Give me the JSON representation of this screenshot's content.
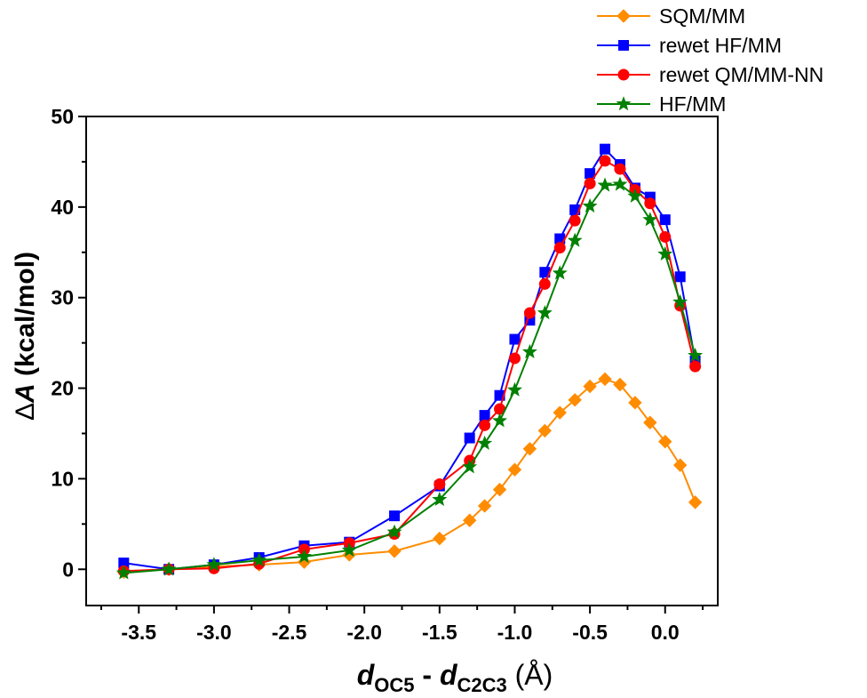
{
  "chart_data": {
    "type": "line",
    "xlabel": {
      "var1": "d",
      "sub1": "OC5",
      "sep": " - ",
      "var2": "d",
      "sub2": "C2C3",
      "unit": " (Å)"
    },
    "ylabel": {
      "delta": "Δ",
      "var": "A",
      "rest": " (kcal/mol)"
    },
    "xlim": [
      -3.85,
      0.35
    ],
    "ylim": [
      -4,
      50
    ],
    "xticks": [
      -3.5,
      -3.0,
      -2.5,
      -2.0,
      -1.5,
      -1.0,
      -0.5,
      0.0
    ],
    "xtick_labels": [
      "-3.5",
      "-3.0",
      "-2.5",
      "-2.0",
      "-1.5",
      "-1.0",
      "-0.5",
      "0.0"
    ],
    "yticks": [
      0,
      10,
      20,
      30,
      40,
      50
    ],
    "ytick_labels": [
      "0",
      "10",
      "20",
      "30",
      "40",
      "50"
    ],
    "grid": false,
    "legend_position": "top-right",
    "series": [
      {
        "name": "SQM/MM",
        "color": "#FF8C00",
        "marker": "diamond",
        "x": [
          -3.6,
          -3.3,
          -3.0,
          -2.7,
          -2.4,
          -2.1,
          -1.8,
          -1.5,
          -1.3,
          -1.2,
          -1.1,
          -1.0,
          -0.9,
          -0.8,
          -0.7,
          -0.6,
          -0.5,
          -0.4,
          -0.3,
          -0.2,
          -0.1,
          0.0,
          0.1,
          0.2
        ],
        "y": [
          -0.3,
          0.0,
          0.3,
          0.5,
          0.8,
          1.6,
          2.0,
          3.4,
          5.4,
          7.0,
          8.8,
          11.0,
          13.3,
          15.3,
          17.3,
          18.7,
          20.2,
          21.0,
          20.4,
          18.4,
          16.2,
          14.1,
          11.5,
          7.4
        ]
      },
      {
        "name": "rewet HF/MM",
        "color": "#0000FF",
        "marker": "square",
        "x": [
          -3.6,
          -3.3,
          -3.0,
          -2.7,
          -2.4,
          -2.1,
          -1.8,
          -1.5,
          -1.3,
          -1.2,
          -1.1,
          -1.0,
          -0.9,
          -0.8,
          -0.7,
          -0.6,
          -0.5,
          -0.4,
          -0.3,
          -0.2,
          -0.1,
          0.0,
          0.1,
          0.2
        ],
        "y": [
          0.7,
          0.0,
          0.5,
          1.3,
          2.6,
          3.0,
          5.9,
          9.2,
          14.5,
          17.0,
          19.2,
          25.4,
          27.5,
          32.8,
          36.5,
          39.7,
          43.7,
          46.4,
          44.7,
          42.1,
          41.1,
          38.6,
          32.3,
          23.0
        ]
      },
      {
        "name": "rewet QM/MM-NN",
        "color": "#FF0000",
        "marker": "circle",
        "x": [
          -3.6,
          -3.3,
          -3.0,
          -2.7,
          -2.4,
          -2.1,
          -1.8,
          -1.5,
          -1.3,
          -1.2,
          -1.1,
          -1.0,
          -0.9,
          -0.8,
          -0.7,
          -0.6,
          -0.5,
          -0.4,
          -0.3,
          -0.2,
          -0.1,
          0.0,
          0.1,
          0.2
        ],
        "y": [
          -0.2,
          0.0,
          0.1,
          0.6,
          2.2,
          2.9,
          3.9,
          9.4,
          12.0,
          15.9,
          17.7,
          23.3,
          28.3,
          31.5,
          35.5,
          38.5,
          42.6,
          45.1,
          44.2,
          41.9,
          40.4,
          36.7,
          29.1,
          22.4
        ]
      },
      {
        "name": "HF/MM",
        "color": "#008000",
        "marker": "star",
        "x": [
          -3.6,
          -3.3,
          -3.0,
          -2.7,
          -2.4,
          -2.1,
          -1.8,
          -1.5,
          -1.3,
          -1.2,
          -1.1,
          -1.0,
          -0.9,
          -0.8,
          -0.7,
          -0.6,
          -0.5,
          -0.4,
          -0.3,
          -0.2,
          -0.1,
          0.0,
          0.1,
          0.2
        ],
        "y": [
          -0.4,
          0.0,
          0.5,
          1.0,
          1.4,
          2.1,
          4.1,
          7.7,
          11.3,
          13.9,
          16.4,
          19.8,
          24.0,
          28.3,
          32.7,
          36.3,
          40.1,
          42.4,
          42.5,
          41.2,
          38.6,
          34.8,
          29.5,
          23.6
        ]
      }
    ]
  }
}
